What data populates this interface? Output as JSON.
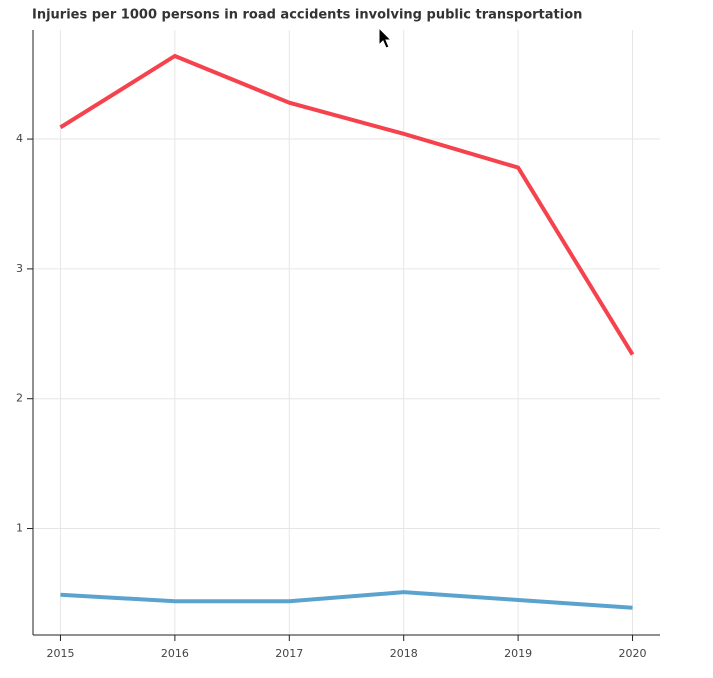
{
  "chart_data": {
    "type": "line",
    "title": "Injuries per 1000 persons in road accidents involving public transportation",
    "x": [
      2015,
      2016,
      2017,
      2018,
      2019,
      2020
    ],
    "series": [
      {
        "color": "#f5424d",
        "values": [
          4.09,
          4.64,
          4.28,
          4.04,
          3.78,
          2.34
        ]
      },
      {
        "color": "#5ba3cf",
        "values": [
          0.49,
          0.44,
          0.44,
          0.51,
          0.45,
          0.39
        ]
      }
    ],
    "xlim": [
      2014.76,
      2020.24
    ],
    "xticks": [
      2015,
      2016,
      2017,
      2018,
      2019,
      2020
    ],
    "ylim": [
      0.18,
      4.84
    ],
    "yticks": [
      1,
      2,
      3,
      4
    ],
    "grid": true
  }
}
